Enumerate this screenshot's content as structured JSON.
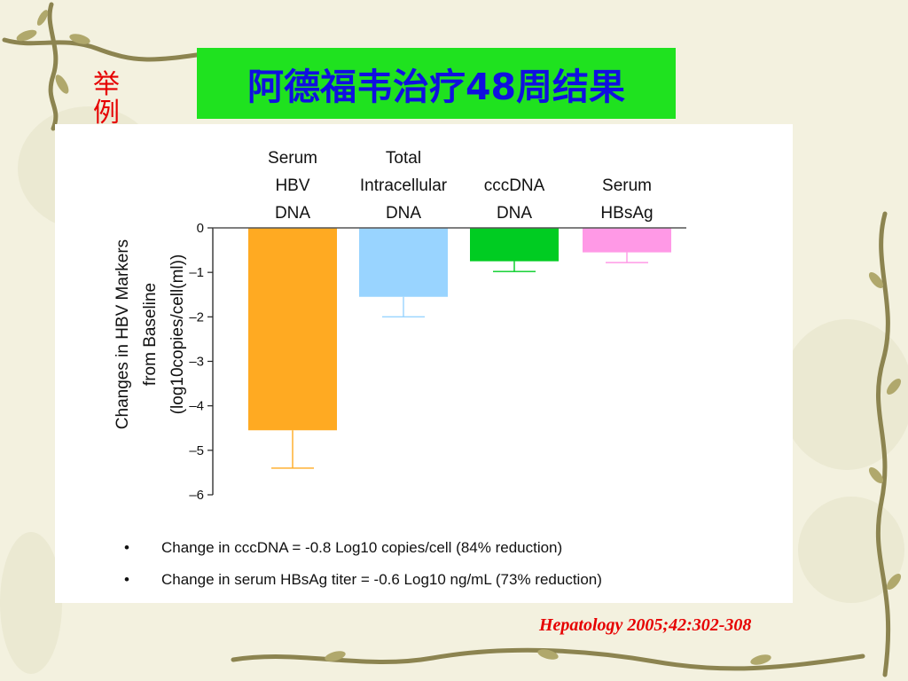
{
  "slide": {
    "label": "举例",
    "title": "阿德福韦治疗48周结果",
    "citation": "Hepatology 2005;42:302-308"
  },
  "chart_data": {
    "type": "bar",
    "categories": [
      "Serum HBV DNA",
      "Total Intracellular DNA",
      "cccDNA DNA",
      "Serum HBsAg"
    ],
    "category_lines": [
      [
        "Serum",
        "HBV",
        "DNA"
      ],
      [
        "Total",
        "Intracellular",
        "DNA"
      ],
      [
        "cccDNA",
        "DNA"
      ],
      [
        "Serum",
        "HBsAg"
      ]
    ],
    "values": [
      -4.55,
      -1.55,
      -0.75,
      -0.55
    ],
    "error_low": [
      -5.4,
      -2.0,
      -0.98,
      -0.78
    ],
    "colors": [
      "#ffaa22",
      "#99d4ff",
      "#00cc22",
      "#ff99e6"
    ],
    "ylabel_lines": [
      "Changes in HBV Markers",
      "from Baseline",
      "(log10copies/cell(ml))"
    ],
    "ylim": [
      -6,
      0
    ],
    "yticks": [
      0,
      -1,
      -2,
      -3,
      -4,
      -5,
      -6
    ],
    "ytick_labels": [
      "0",
      "–1",
      "–2",
      "–3",
      "–4",
      "–5",
      "–6"
    ],
    "grid": false
  },
  "bullets": [
    "Change in cccDNA = -0.8 Log10 copies/cell (84% reduction)",
    "Change in serum HBsAg titer = -0.6 Log10 ng/mL (73% reduction)"
  ],
  "bullet_symbol": "•"
}
